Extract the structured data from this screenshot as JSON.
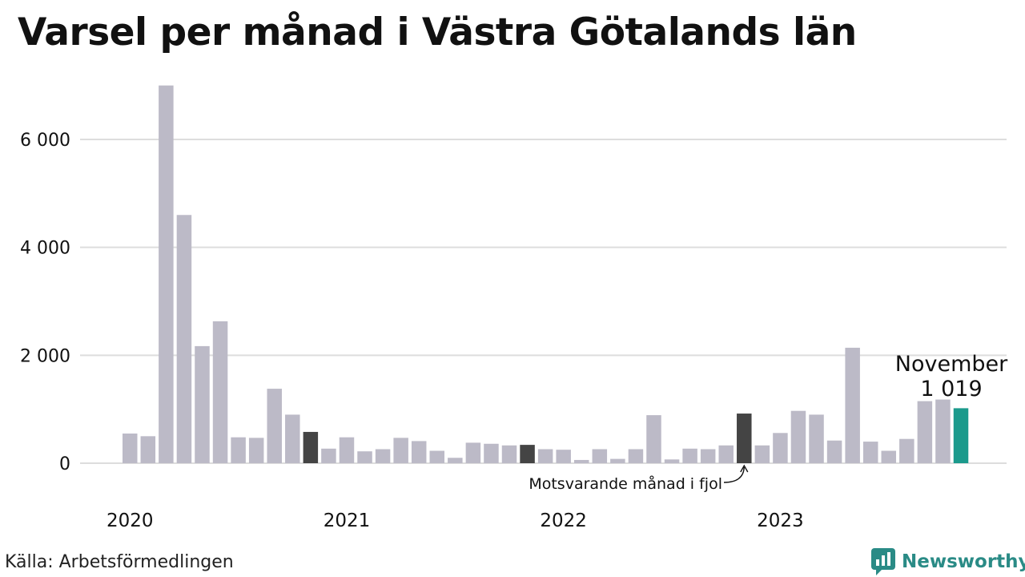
{
  "title": "Varsel per månad i Västra Götalands län",
  "source": "Källa: Arbetsförmedlingen",
  "brand": {
    "name": "Newsworthy",
    "color": "#2a8b86",
    "icon": "newsworthy-chart-bubble-icon"
  },
  "colors": {
    "default_bar": "#bcbac7",
    "same_month_bar": "#444444",
    "current_bar": "#1b9a8c",
    "grid": "#dddddd",
    "text": "#111111"
  },
  "chart_data": {
    "type": "bar",
    "title": "Varsel per månad i Västra Götalands län",
    "xlabel": "",
    "ylabel": "",
    "ylim": [
      0,
      7000
    ],
    "y_ticks": [
      0,
      2000,
      4000,
      6000
    ],
    "y_tick_labels": [
      "0",
      "2 000",
      "4 000",
      "6 000"
    ],
    "grid": true,
    "categories": [
      "2020-01",
      "2020-02",
      "2020-03",
      "2020-04",
      "2020-05",
      "2020-06",
      "2020-07",
      "2020-08",
      "2020-09",
      "2020-10",
      "2020-11",
      "2020-12",
      "2021-01",
      "2021-02",
      "2021-03",
      "2021-04",
      "2021-05",
      "2021-06",
      "2021-07",
      "2021-08",
      "2021-09",
      "2021-10",
      "2021-11",
      "2021-12",
      "2022-01",
      "2022-02",
      "2022-03",
      "2022-04",
      "2022-05",
      "2022-06",
      "2022-07",
      "2022-08",
      "2022-09",
      "2022-10",
      "2022-11",
      "2022-12",
      "2023-01",
      "2023-02",
      "2023-03",
      "2023-04",
      "2023-05",
      "2023-06",
      "2023-07",
      "2023-08",
      "2023-09",
      "2023-10",
      "2023-11"
    ],
    "values": [
      550,
      500,
      7000,
      4600,
      2170,
      2630,
      480,
      470,
      1380,
      900,
      580,
      270,
      480,
      220,
      260,
      470,
      410,
      230,
      100,
      380,
      360,
      330,
      340,
      260,
      250,
      60,
      260,
      80,
      260,
      890,
      70,
      270,
      260,
      330,
      920,
      330,
      560,
      970,
      900,
      420,
      2140,
      400,
      230,
      450,
      1150,
      1180,
      1019
    ],
    "highlight": {
      "same_month_indices": [
        10,
        22,
        34
      ],
      "current_index": 46
    },
    "x_tick_labels": [
      {
        "index": 0,
        "label": "2020"
      },
      {
        "index": 12,
        "label": "2021"
      },
      {
        "index": 24,
        "label": "2022"
      },
      {
        "index": 36,
        "label": "2023"
      }
    ],
    "annotations": {
      "current_month": "November",
      "current_value": "1 019",
      "last_year_label": "Motsvarande månad i fjol"
    }
  }
}
